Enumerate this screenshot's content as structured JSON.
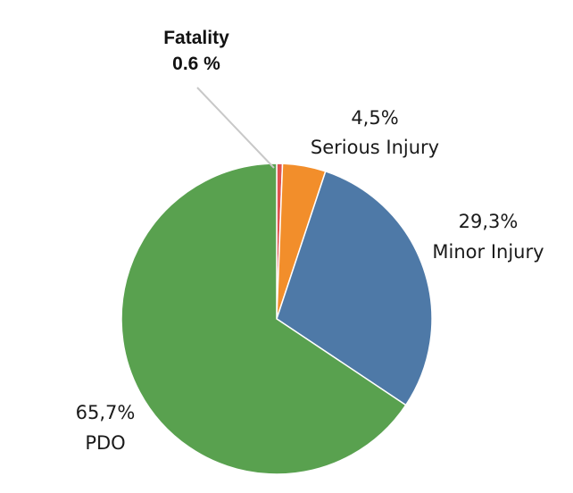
{
  "chart_data": {
    "type": "pie",
    "slices": [
      {
        "label": "Fatality",
        "value_text": "0.6 %",
        "value": 0.6,
        "color": "#e0524f"
      },
      {
        "label": "Serious Injury",
        "value_text": "4,5%",
        "value": 4.5,
        "color": "#f28e2b"
      },
      {
        "label": "Minor Injury",
        "value_text": "29,3%",
        "value": 29.3,
        "color": "#4e79a7"
      },
      {
        "label": "PDO",
        "value_text": "65,7%",
        "value": 65.7,
        "color": "#59a14f"
      }
    ],
    "start_angle_deg": 0,
    "direction": "clockwise",
    "leader_line_color": "#c8c8c8"
  }
}
